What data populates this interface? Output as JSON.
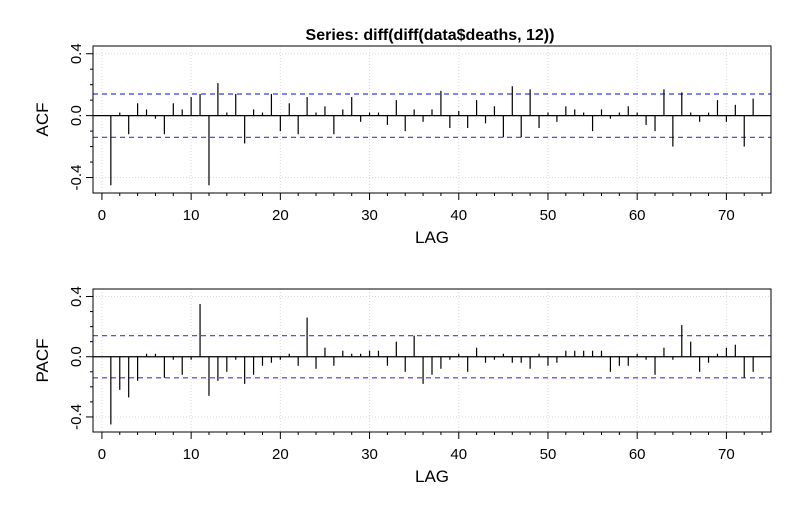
{
  "title": "Series:  diff(diff(data$deaths, 12))",
  "colors": {
    "line": "#000000",
    "bound": "#3a3ae6",
    "grid": "#d9d9d9"
  },
  "chart_data": [
    {
      "type": "bar",
      "name": "acf",
      "ylabel": "ACF",
      "xlabel": "LAG",
      "xlim": [
        -1,
        75
      ],
      "ylim": [
        -0.5,
        0.45
      ],
      "xticks": [
        0,
        10,
        20,
        30,
        40,
        50,
        60,
        70
      ],
      "xtick_labels": [
        "0",
        "10",
        "20",
        "30",
        "40",
        "50",
        "60",
        "70"
      ],
      "yticks": [
        -0.4,
        0.0,
        0.4
      ],
      "ytick_labels": [
        "-0.4",
        "0.0",
        "0.4"
      ],
      "bounds": [
        0.14,
        -0.14
      ],
      "grid": true,
      "x": [
        1,
        2,
        3,
        4,
        5,
        6,
        7,
        8,
        9,
        10,
        11,
        12,
        13,
        14,
        15,
        16,
        17,
        18,
        19,
        20,
        21,
        22,
        23,
        24,
        25,
        26,
        27,
        28,
        29,
        30,
        31,
        32,
        33,
        34,
        35,
        36,
        37,
        38,
        39,
        40,
        41,
        42,
        43,
        44,
        45,
        46,
        47,
        48,
        49,
        50,
        51,
        52,
        53,
        54,
        55,
        56,
        57,
        58,
        59,
        60,
        61,
        62,
        63,
        64,
        65,
        66,
        67,
        68,
        69,
        70,
        71,
        72,
        73
      ],
      "values": [
        -0.45,
        0.02,
        -0.12,
        0.08,
        0.04,
        -0.02,
        -0.12,
        0.08,
        0.04,
        0.12,
        0.14,
        -0.45,
        0.21,
        0.02,
        0.14,
        -0.18,
        0.04,
        0.02,
        0.14,
        -0.1,
        0.08,
        -0.12,
        0.12,
        0.02,
        0.06,
        -0.12,
        0.04,
        0.12,
        -0.04,
        0.02,
        0.02,
        -0.06,
        0.1,
        -0.1,
        0.04,
        -0.04,
        0.04,
        0.16,
        -0.08,
        0.03,
        -0.08,
        0.1,
        -0.05,
        0.06,
        -0.14,
        0.19,
        -0.14,
        0.17,
        -0.08,
        0.02,
        -0.04,
        0.06,
        0.04,
        0.02,
        -0.1,
        0.04,
        -0.02,
        0.02,
        0.06,
        0.02,
        -0.06,
        -0.1,
        0.17,
        -0.2,
        0.15,
        0.02,
        -0.04,
        0.02,
        0.1,
        -0.04,
        0.07,
        -0.2,
        0.11
      ]
    },
    {
      "type": "bar",
      "name": "pacf",
      "ylabel": "PACF",
      "xlabel": "LAG",
      "xlim": [
        -1,
        75
      ],
      "ylim": [
        -0.5,
        0.45
      ],
      "xticks": [
        0,
        10,
        20,
        30,
        40,
        50,
        60,
        70
      ],
      "xtick_labels": [
        "0",
        "10",
        "20",
        "30",
        "40",
        "50",
        "60",
        "70"
      ],
      "yticks": [
        -0.4,
        0.0,
        0.4
      ],
      "ytick_labels": [
        "-0.4",
        "0.0",
        "0.4"
      ],
      "bounds": [
        0.14,
        -0.14
      ],
      "grid": true,
      "x": [
        1,
        2,
        3,
        4,
        5,
        6,
        7,
        8,
        9,
        10,
        11,
        12,
        13,
        14,
        15,
        16,
        17,
        18,
        19,
        20,
        21,
        22,
        23,
        24,
        25,
        26,
        27,
        28,
        29,
        30,
        31,
        32,
        33,
        34,
        35,
        36,
        37,
        38,
        39,
        40,
        41,
        42,
        43,
        44,
        45,
        46,
        47,
        48,
        49,
        50,
        51,
        52,
        53,
        54,
        55,
        56,
        57,
        58,
        59,
        60,
        61,
        62,
        63,
        64,
        65,
        66,
        67,
        68,
        69,
        70,
        71,
        72,
        73
      ],
      "values": [
        -0.45,
        -0.22,
        -0.27,
        -0.16,
        0.02,
        0.02,
        -0.14,
        -0.02,
        -0.12,
        -0.02,
        0.35,
        -0.26,
        -0.16,
        -0.1,
        -0.02,
        -0.18,
        -0.12,
        -0.06,
        -0.04,
        -0.02,
        0.02,
        -0.06,
        0.26,
        -0.08,
        0.06,
        -0.06,
        0.04,
        0.02,
        0.02,
        0.04,
        0.04,
        -0.06,
        0.1,
        -0.1,
        0.14,
        -0.18,
        -0.12,
        -0.08,
        -0.02,
        0.02,
        -0.1,
        0.06,
        -0.04,
        -0.02,
        0.02,
        -0.04,
        -0.04,
        -0.08,
        0.02,
        -0.06,
        -0.04,
        0.04,
        0.04,
        0.04,
        0.04,
        0.04,
        -0.1,
        -0.06,
        -0.06,
        0.02,
        -0.02,
        -0.12,
        0.06,
        -0.02,
        0.21,
        0.1,
        -0.1,
        -0.04,
        0.02,
        0.06,
        0.08,
        -0.14,
        -0.1
      ]
    }
  ]
}
